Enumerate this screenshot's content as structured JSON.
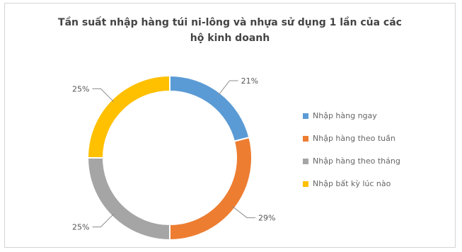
{
  "chart_data": {
    "type": "pie",
    "style": "donut",
    "title": [
      "Tần suất nhập hàng túi ni-lông và nhựa sử dụng 1 lần của các",
      "hộ kinh doanh"
    ],
    "categories": [
      "Nhập hàng ngay",
      "Nhập hàng theo tuần",
      "Nhập hàng theo tháng",
      "Nhập bất kỳ lúc nào"
    ],
    "values": [
      21,
      29,
      25,
      25
    ],
    "value_labels": [
      "21%",
      "29%",
      "25%",
      "25%"
    ],
    "colors": [
      "#5b9bd5",
      "#ed7d31",
      "#a5a5a5",
      "#ffc000"
    ],
    "legend_position": "right"
  }
}
